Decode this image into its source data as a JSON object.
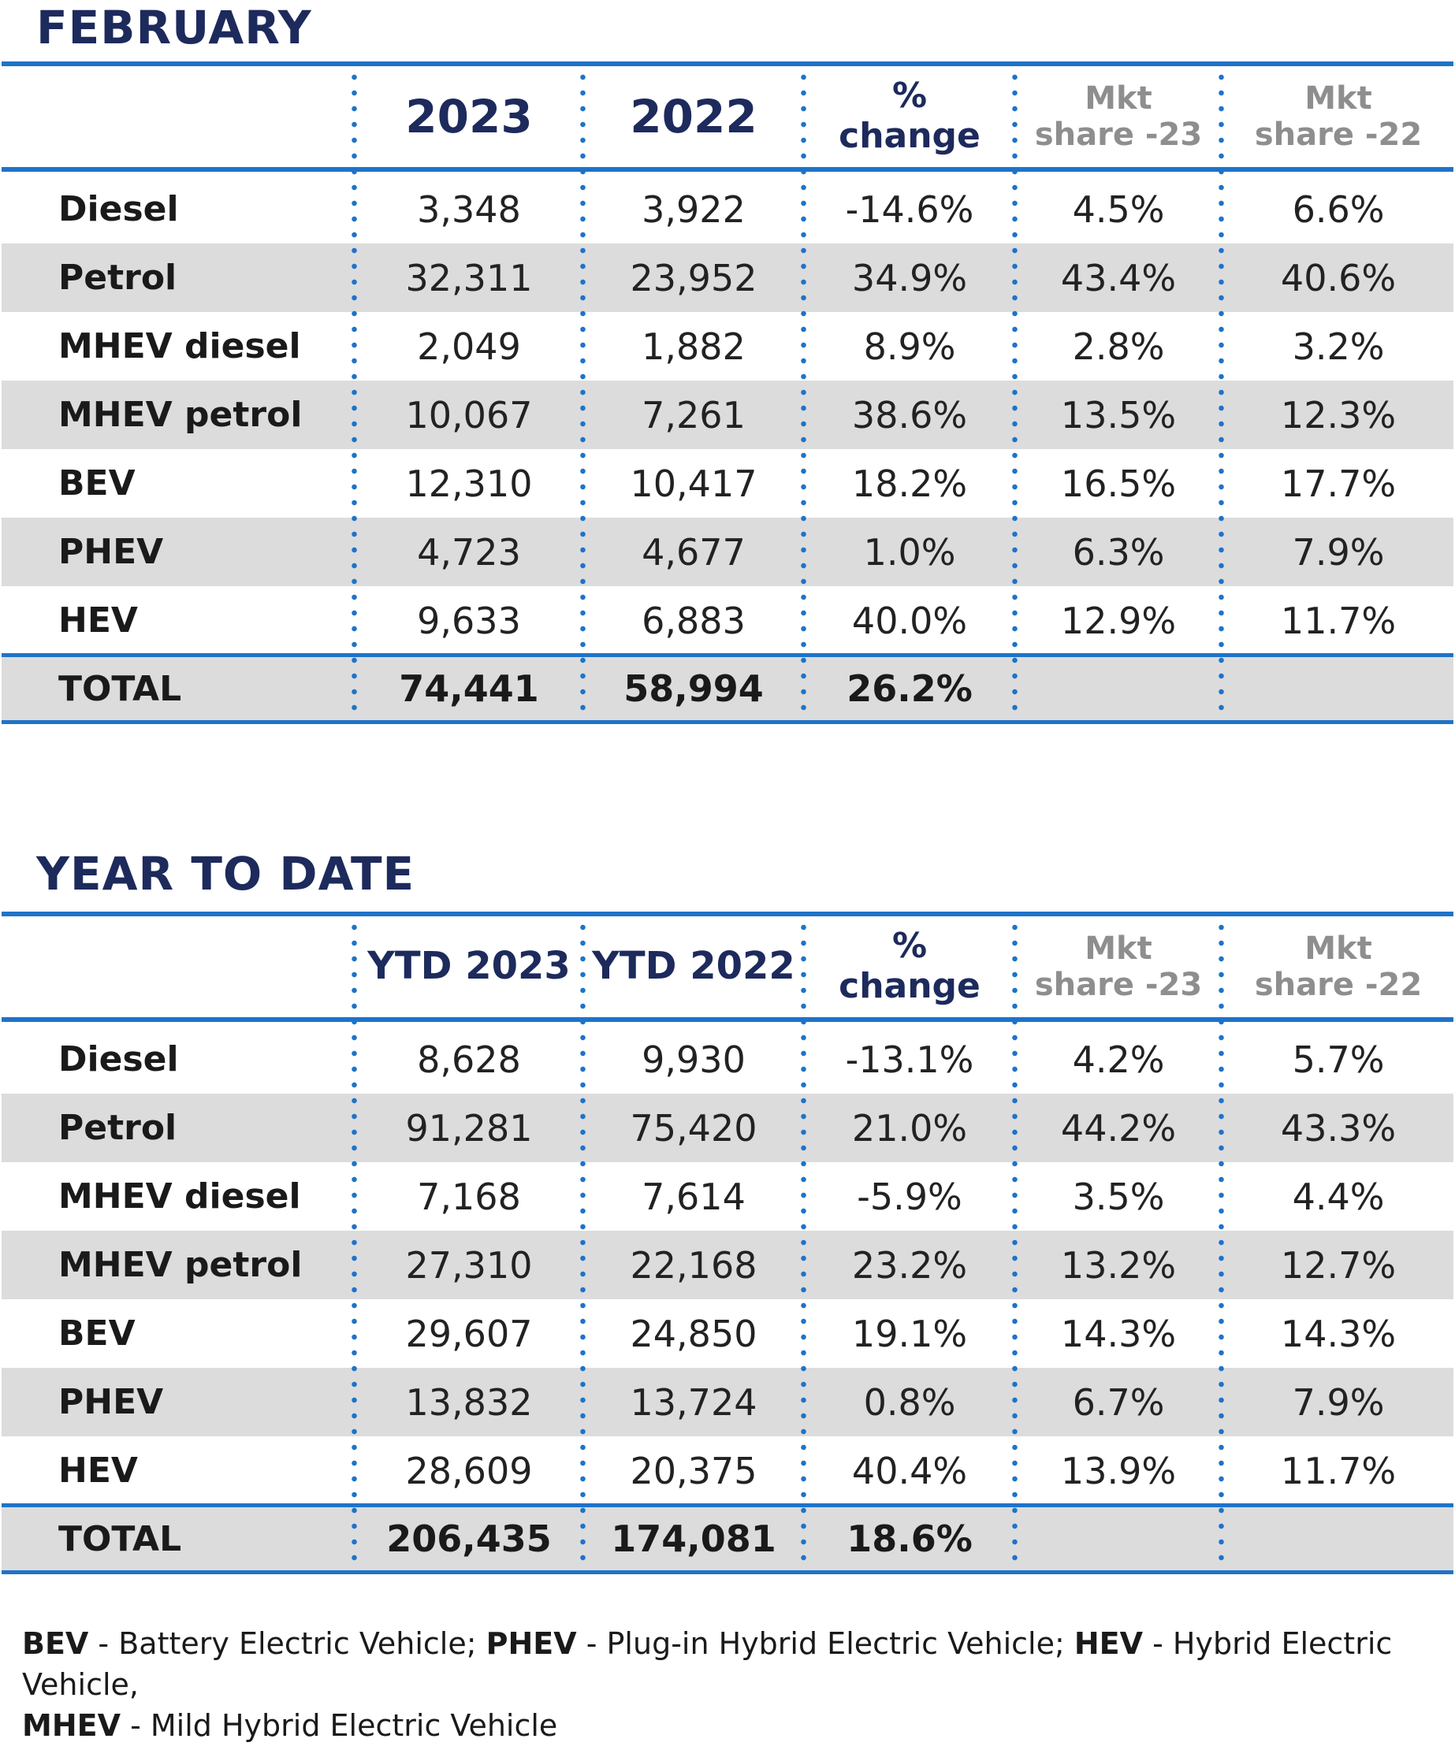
{
  "february": {
    "title": "FEBRUARY",
    "headers": {
      "col1": "2023",
      "col2": "2022",
      "change_line1": "%",
      "change_line2": "change",
      "mkt23_line1": "Mkt",
      "mkt23_line2": "share -23",
      "mkt22_line1": "Mkt",
      "mkt22_line2": "share -22"
    },
    "rows": [
      {
        "label": "Diesel",
        "v2023": "3,348",
        "v2022": "3,922",
        "change": "-14.6%",
        "mkt23": "4.5%",
        "mkt22": "6.6%"
      },
      {
        "label": "Petrol",
        "v2023": "32,311",
        "v2022": "23,952",
        "change": "34.9%",
        "mkt23": "43.4%",
        "mkt22": "40.6%"
      },
      {
        "label": "MHEV diesel",
        "v2023": "2,049",
        "v2022": "1,882",
        "change": "8.9%",
        "mkt23": "2.8%",
        "mkt22": "3.2%"
      },
      {
        "label": "MHEV petrol",
        "v2023": "10,067",
        "v2022": "7,261",
        "change": "38.6%",
        "mkt23": "13.5%",
        "mkt22": "12.3%"
      },
      {
        "label": "BEV",
        "v2023": "12,310",
        "v2022": "10,417",
        "change": "18.2%",
        "mkt23": "16.5%",
        "mkt22": "17.7%"
      },
      {
        "label": "PHEV",
        "v2023": "4,723",
        "v2022": "4,677",
        "change": "1.0%",
        "mkt23": "6.3%",
        "mkt22": "7.9%"
      },
      {
        "label": "HEV",
        "v2023": "9,633",
        "v2022": "6,883",
        "change": "40.0%",
        "mkt23": "12.9%",
        "mkt22": "11.7%"
      }
    ],
    "total": {
      "label": "TOTAL",
      "v2023": "74,441",
      "v2022": "58,994",
      "change": "26.2%"
    }
  },
  "ytd": {
    "title": "YEAR TO DATE",
    "headers": {
      "col1": "YTD 2023",
      "col2": "YTD 2022",
      "change_line1": "%",
      "change_line2": "change",
      "mkt23_line1": "Mkt",
      "mkt23_line2": "share -23",
      "mkt22_line1": "Mkt",
      "mkt22_line2": "share -22"
    },
    "rows": [
      {
        "label": "Diesel",
        "v2023": "8,628",
        "v2022": "9,930",
        "change": "-13.1%",
        "mkt23": "4.2%",
        "mkt22": "5.7%"
      },
      {
        "label": "Petrol",
        "v2023": "91,281",
        "v2022": "75,420",
        "change": "21.0%",
        "mkt23": "44.2%",
        "mkt22": "43.3%"
      },
      {
        "label": "MHEV diesel",
        "v2023": "7,168",
        "v2022": "7,614",
        "change": "-5.9%",
        "mkt23": "3.5%",
        "mkt22": "4.4%"
      },
      {
        "label": "MHEV petrol",
        "v2023": "27,310",
        "v2022": "22,168",
        "change": "23.2%",
        "mkt23": "13.2%",
        "mkt22": "12.7%"
      },
      {
        "label": "BEV",
        "v2023": "29,607",
        "v2022": "24,850",
        "change": "19.1%",
        "mkt23": "14.3%",
        "mkt22": "14.3%"
      },
      {
        "label": "PHEV",
        "v2023": "13,832",
        "v2022": "13,724",
        "change": "0.8%",
        "mkt23": "6.7%",
        "mkt22": "7.9%"
      },
      {
        "label": "HEV",
        "v2023": "28,609",
        "v2022": "20,375",
        "change": "40.4%",
        "mkt23": "13.9%",
        "mkt22": "11.7%"
      }
    ],
    "total": {
      "label": "TOTAL",
      "v2023": "206,435",
      "v2022": "174,081",
      "change": "18.6%"
    }
  },
  "footnote": {
    "bev_abbr": "BEV",
    "bev_text": " - Battery Electric Vehicle; ",
    "phev_abbr": "PHEV",
    "phev_text": " - Plug-in Hybrid Electric Vehicle; ",
    "hev_abbr": "HEV",
    "hev_text": " - Hybrid Electric Vehicle,",
    "mhev_abbr": "MHEV",
    "mhev_text": " - Mild Hybrid Electric Vehicle"
  },
  "colors": {
    "accent_blue": "#1e73c8",
    "title_navy": "#1d2a5c",
    "row_shade": "#dcdcdd",
    "header_grey": "#8e8e8e"
  }
}
